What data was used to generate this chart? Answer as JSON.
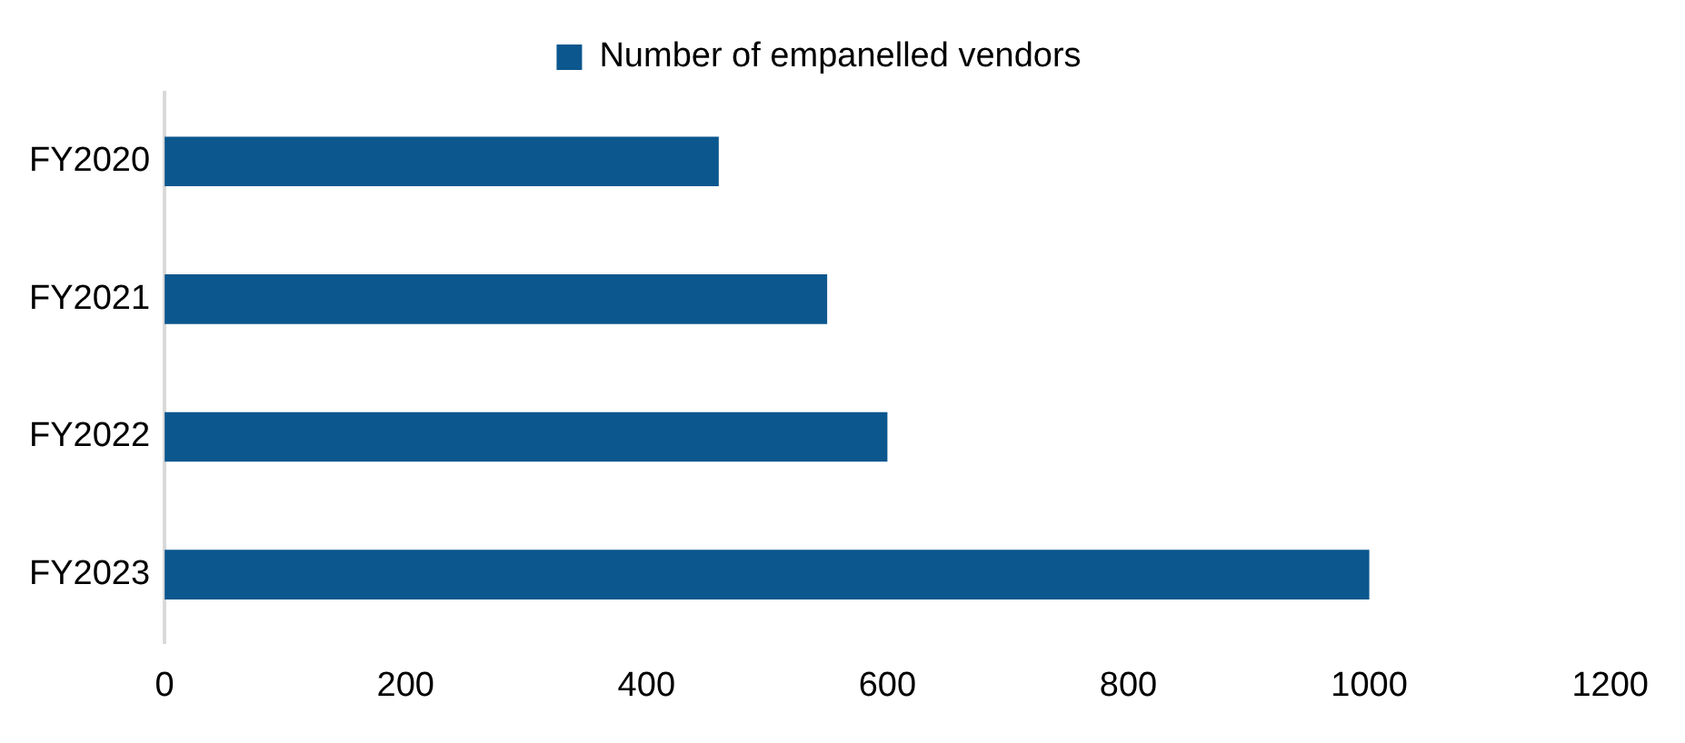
{
  "chart_data": {
    "type": "bar",
    "orientation": "horizontal",
    "categories": [
      "FY2020",
      "FY2021",
      "FY2022",
      "FY2023"
    ],
    "series": [
      {
        "name": "Number of empanelled vendors",
        "color": "#0b578e",
        "values": [
          460,
          550,
          600,
          1000
        ]
      }
    ],
    "xlim": [
      0,
      1200
    ],
    "xticks": [
      0,
      200,
      400,
      600,
      800,
      1000,
      1200
    ],
    "grid": false,
    "legend": "top"
  }
}
